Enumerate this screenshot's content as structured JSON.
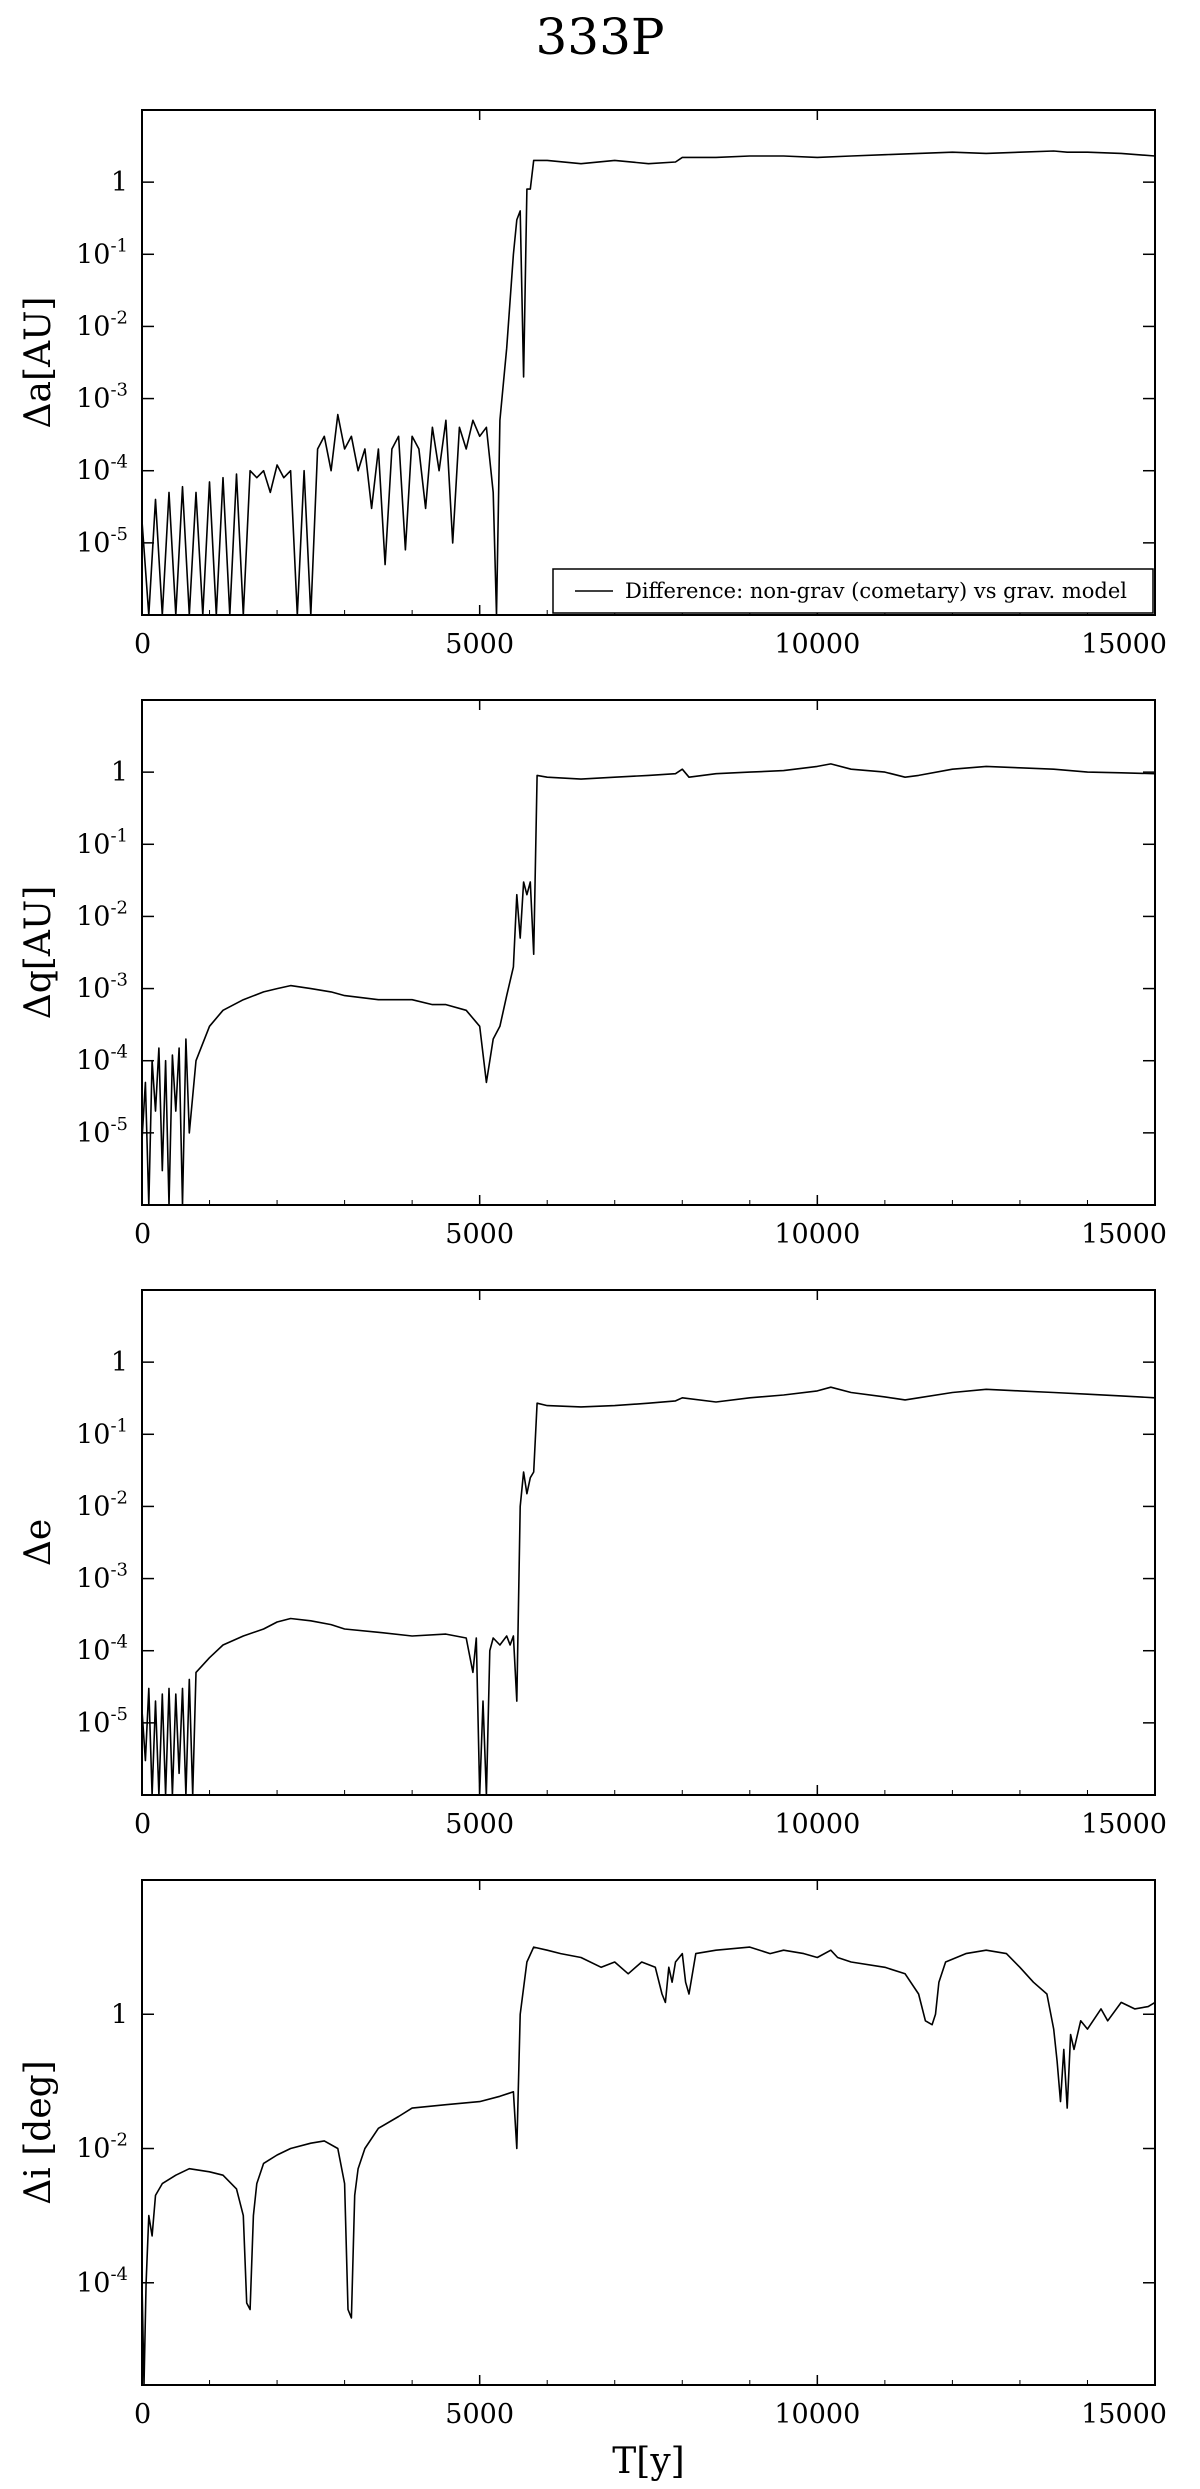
{
  "figure": {
    "title": "333P"
  },
  "chart_data": [
    {
      "type": "line",
      "ylabel": "Δa[AU]",
      "xlabel": "",
      "xlim": [
        0,
        15000
      ],
      "ylim": [
        1e-06,
        10
      ],
      "yscale": "log",
      "grid": false,
      "xticks": [
        0,
        5000,
        10000,
        15000
      ],
      "yticks": [
        {
          "base": "10",
          "exp": "-5"
        },
        {
          "base": "10",
          "exp": "-4"
        },
        {
          "base": "10",
          "exp": "-3"
        },
        {
          "base": "10",
          "exp": "-2"
        },
        {
          "base": "10",
          "exp": "-1"
        },
        {
          "base": "1",
          "exp": ""
        }
      ],
      "legend": {
        "position": "bottom-right",
        "entries": [
          "Difference: non-grav (cometary) vs grav. model"
        ]
      },
      "series": [
        {
          "x": [
            0,
            100,
            200,
            300,
            400,
            500,
            600,
            700,
            800,
            900,
            1000,
            1100,
            1200,
            1300,
            1400,
            1500,
            1600,
            1700,
            1800,
            1900,
            2000,
            2100,
            2200,
            2300,
            2400,
            2500,
            2600,
            2700,
            2800,
            2900,
            3000,
            3100,
            3200,
            3300,
            3400,
            3500,
            3600,
            3700,
            3800,
            3900,
            4000,
            4100,
            4200,
            4300,
            4400,
            4500,
            4600,
            4700,
            4800,
            4900,
            5000,
            5100,
            5200,
            5250,
            5300,
            5400,
            5500,
            5550,
            5600,
            5650,
            5700,
            5750,
            5800,
            6000,
            6500,
            7000,
            7500,
            7900,
            8000,
            8500,
            9000,
            9500,
            10000,
            10500,
            11000,
            11500,
            12000,
            12500,
            13000,
            13500,
            13700,
            14000,
            14500,
            15000
          ],
          "y": [
            2e-05,
            1e-06,
            4e-05,
            1e-06,
            5e-05,
            1e-06,
            6e-05,
            1e-06,
            5e-05,
            1e-06,
            7e-05,
            1e-06,
            8e-05,
            1e-06,
            9e-05,
            1e-06,
            0.0001,
            8e-05,
            0.0001,
            5e-05,
            0.00012,
            8e-05,
            0.0001,
            1e-06,
            0.0001,
            1e-06,
            0.0002,
            0.0003,
            0.0001,
            0.0006,
            0.0002,
            0.0003,
            0.0001,
            0.0002,
            3e-05,
            0.0002,
            5e-06,
            0.0002,
            0.0003,
            8e-06,
            0.0003,
            0.0002,
            3e-05,
            0.0004,
            0.0001,
            0.0005,
            1e-05,
            0.0004,
            0.0002,
            0.0005,
            0.0003,
            0.0004,
            5e-05,
            1e-06,
            0.0005,
            0.005,
            0.1,
            0.3,
            0.4,
            0.002,
            0.8,
            0.8,
            2.0,
            2.0,
            1.8,
            2.0,
            1.8,
            1.9,
            2.2,
            2.2,
            2.3,
            2.3,
            2.2,
            2.3,
            2.4,
            2.5,
            2.6,
            2.5,
            2.6,
            2.7,
            2.6,
            2.6,
            2.5,
            2.3
          ]
        }
      ]
    },
    {
      "type": "line",
      "ylabel": "Δq[AU]",
      "xlabel": "",
      "xlim": [
        0,
        15000
      ],
      "ylim": [
        1e-06,
        10
      ],
      "yscale": "log",
      "grid": false,
      "xticks": [
        0,
        5000,
        10000,
        15000
      ],
      "yticks": [
        {
          "base": "10",
          "exp": "-5"
        },
        {
          "base": "10",
          "exp": "-4"
        },
        {
          "base": "10",
          "exp": "-3"
        },
        {
          "base": "10",
          "exp": "-2"
        },
        {
          "base": "10",
          "exp": "-1"
        },
        {
          "base": "1",
          "exp": ""
        }
      ],
      "series": [
        {
          "x": [
            0,
            50,
            100,
            150,
            200,
            250,
            300,
            350,
            400,
            450,
            500,
            550,
            600,
            650,
            700,
            800,
            1000,
            1200,
            1500,
            1800,
            2000,
            2200,
            2500,
            2800,
            3000,
            3500,
            4000,
            4300,
            4500,
            4800,
            5000,
            5100,
            5150,
            5200,
            5300,
            5400,
            5500,
            5550,
            5600,
            5650,
            5700,
            5750,
            5800,
            5850,
            6000,
            6500,
            7000,
            7500,
            7900,
            8000,
            8100,
            8500,
            9000,
            9500,
            10000,
            10200,
            10500,
            11000,
            11300,
            11500,
            12000,
            12500,
            13000,
            13500,
            14000,
            14500,
            15000
          ],
          "y": [
            8e-06,
            5e-05,
            1e-06,
            0.0001,
            2e-05,
            0.00015,
            3e-06,
            0.0001,
            1e-06,
            0.00012,
            2e-05,
            0.00015,
            1e-06,
            0.0002,
            1e-05,
            0.0001,
            0.0003,
            0.0005,
            0.0007,
            0.0009,
            0.001,
            0.0011,
            0.001,
            0.0009,
            0.0008,
            0.0007,
            0.0007,
            0.0006,
            0.0006,
            0.0005,
            0.0003,
            5e-05,
            0.0001,
            0.0002,
            0.0003,
            0.0008,
            0.002,
            0.02,
            0.005,
            0.03,
            0.02,
            0.03,
            0.003,
            0.9,
            0.85,
            0.8,
            0.85,
            0.9,
            0.95,
            1.1,
            0.85,
            0.95,
            1.0,
            1.05,
            1.2,
            1.3,
            1.1,
            1.0,
            0.85,
            0.9,
            1.1,
            1.2,
            1.15,
            1.1,
            1.0,
            0.98,
            0.95
          ]
        }
      ]
    },
    {
      "type": "line",
      "ylabel": "Δe",
      "xlabel": "",
      "xlim": [
        0,
        15000
      ],
      "ylim": [
        1e-06,
        10
      ],
      "yscale": "log",
      "grid": false,
      "xticks": [
        0,
        5000,
        10000,
        15000
      ],
      "yticks": [
        {
          "base": "10",
          "exp": "-5"
        },
        {
          "base": "10",
          "exp": "-4"
        },
        {
          "base": "10",
          "exp": "-3"
        },
        {
          "base": "10",
          "exp": "-2"
        },
        {
          "base": "10",
          "exp": "-1"
        },
        {
          "base": "1",
          "exp": ""
        }
      ],
      "series": [
        {
          "x": [
            0,
            50,
            100,
            150,
            200,
            250,
            300,
            350,
            400,
            450,
            500,
            550,
            600,
            650,
            700,
            750,
            800,
            1000,
            1200,
            1500,
            1800,
            2000,
            2200,
            2500,
            2800,
            3000,
            3500,
            4000,
            4500,
            4800,
            4900,
            4950,
            5000,
            5050,
            5100,
            5150,
            5200,
            5300,
            5400,
            5450,
            5500,
            5550,
            5600,
            5650,
            5700,
            5750,
            5800,
            5850,
            6000,
            6500,
            7000,
            7500,
            7900,
            8000,
            8500,
            9000,
            9500,
            10000,
            10200,
            10500,
            11000,
            11300,
            11500,
            12000,
            12500,
            13000,
            13500,
            14000,
            14500,
            15000
          ],
          "y": [
            1.5e-05,
            3e-06,
            3e-05,
            1e-06,
            2e-05,
            1e-06,
            2.5e-05,
            1e-06,
            3e-05,
            1e-06,
            2.5e-05,
            2e-06,
            3e-05,
            1e-06,
            4e-05,
            1e-06,
            5e-05,
            8e-05,
            0.00012,
            0.00016,
            0.0002,
            0.00025,
            0.00028,
            0.00026,
            0.00023,
            0.0002,
            0.00018,
            0.00016,
            0.00017,
            0.00015,
            5e-05,
            0.00015,
            1e-06,
            2e-05,
            1e-06,
            0.0001,
            0.00015,
            0.00012,
            0.00016,
            0.00012,
            0.00016,
            2e-05,
            0.01,
            0.03,
            0.015,
            0.025,
            0.03,
            0.27,
            0.25,
            0.24,
            0.25,
            0.27,
            0.29,
            0.32,
            0.28,
            0.32,
            0.35,
            0.4,
            0.45,
            0.38,
            0.33,
            0.3,
            0.32,
            0.38,
            0.42,
            0.4,
            0.38,
            0.36,
            0.34,
            0.32
          ]
        }
      ]
    },
    {
      "type": "line",
      "ylabel": "Δi [deg]",
      "xlabel": "T[y]",
      "xlim": [
        0,
        15000
      ],
      "ylim": [
        3e-06,
        100
      ],
      "yscale": "log",
      "grid": false,
      "xticks": [
        0,
        5000,
        10000,
        15000
      ],
      "yticks": [
        {
          "base": "10",
          "exp": "-4"
        },
        {
          "base": "10",
          "exp": "-2"
        },
        {
          "base": "1",
          "exp": ""
        }
      ],
      "series": [
        {
          "x": [
            0,
            30,
            60,
            100,
            150,
            200,
            300,
            500,
            700,
            1000,
            1200,
            1400,
            1500,
            1550,
            1600,
            1650,
            1700,
            1800,
            2000,
            2200,
            2500,
            2700,
            2900,
            3000,
            3050,
            3100,
            3150,
            3200,
            3300,
            3500,
            3800,
            4000,
            4500,
            5000,
            5300,
            5500,
            5550,
            5600,
            5700,
            5800,
            6000,
            6200,
            6500,
            6800,
            7000,
            7200,
            7400,
            7600,
            7700,
            7750,
            7800,
            7850,
            7900,
            8000,
            8050,
            8100,
            8200,
            8500,
            9000,
            9300,
            9500,
            9800,
            10000,
            10200,
            10300,
            10500,
            11000,
            11300,
            11500,
            11600,
            11700,
            11750,
            11800,
            11900,
            12200,
            12500,
            12800,
            13000,
            13200,
            13400,
            13500,
            13550,
            13600,
            13650,
            13700,
            13750,
            13800,
            13900,
            14000,
            14200,
            14300,
            14500,
            14700,
            14900,
            15000
          ],
          "y": [
            0.0001,
            3e-06,
            0.0001,
            0.001,
            0.0005,
            0.002,
            0.003,
            0.004,
            0.005,
            0.0045,
            0.004,
            0.0025,
            0.001,
            5e-05,
            4e-05,
            0.001,
            0.003,
            0.006,
            0.008,
            0.01,
            0.012,
            0.013,
            0.01,
            0.003,
            4e-05,
            3e-05,
            0.002,
            0.005,
            0.01,
            0.02,
            0.03,
            0.04,
            0.045,
            0.05,
            0.06,
            0.07,
            0.01,
            1,
            6,
            10,
            9,
            8,
            7,
            5,
            6,
            4,
            6,
            5,
            2,
            1.5,
            5,
            3,
            6,
            8,
            3,
            2,
            8,
            9,
            10,
            8,
            9,
            8,
            7,
            9,
            7,
            6,
            5,
            4,
            2,
            0.8,
            0.7,
            1,
            3,
            6,
            8,
            9,
            8,
            5,
            3,
            2,
            0.6,
            0.2,
            0.05,
            0.3,
            0.04,
            0.5,
            0.3,
            0.8,
            0.6,
            1.2,
            0.8,
            1.5,
            1.2,
            1.3,
            1.5
          ]
        }
      ]
    }
  ]
}
